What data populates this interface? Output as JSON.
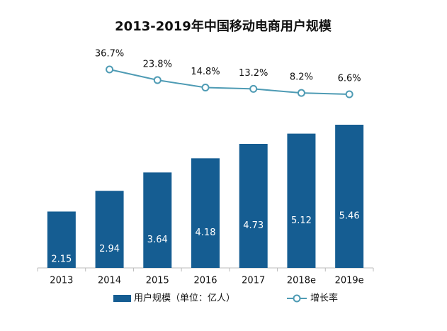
{
  "chart_data": {
    "type": "bar",
    "title": "2013-2019年中国移动电商用户规模",
    "categories": [
      "2013",
      "2014",
      "2015",
      "2016",
      "2017",
      "2018e",
      "2019e"
    ],
    "series": [
      {
        "name": "用户规模（单位：亿人）",
        "type": "bar",
        "color": "#155d92",
        "values": [
          2.15,
          2.94,
          3.64,
          4.18,
          4.73,
          5.12,
          5.46
        ]
      },
      {
        "name": "增长率",
        "type": "line",
        "axis": "y2",
        "color": "#4e9bb4",
        "values": [
          null,
          36.7,
          23.8,
          14.8,
          13.2,
          8.2,
          6.6
        ],
        "value_labels": [
          null,
          "36.7%",
          "23.8%",
          "14.8%",
          "13.2%",
          "8.2%",
          "6.6%"
        ]
      }
    ],
    "legend": "bottom"
  }
}
